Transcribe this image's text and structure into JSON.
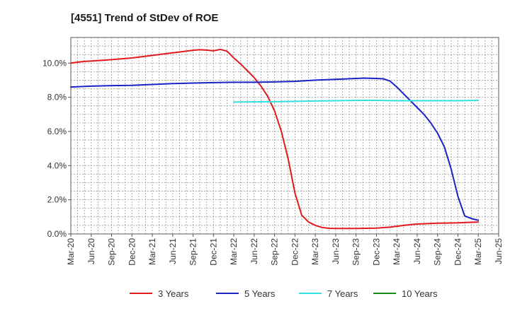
{
  "chart_data": {
    "type": "line",
    "title": "[4551]  Trend of StDev of ROE",
    "xlabel": "",
    "ylabel": "",
    "x_ticks": [
      "Mar-20",
      "Jun-20",
      "Sep-20",
      "Dec-20",
      "Mar-21",
      "Jun-21",
      "Sep-21",
      "Dec-21",
      "Mar-22",
      "Jun-22",
      "Sep-22",
      "Dec-22",
      "Mar-23",
      "Jun-23",
      "Sep-23",
      "Dec-23",
      "Mar-24",
      "Jun-24",
      "Sep-24",
      "Dec-24",
      "Mar-25",
      "Jun-25"
    ],
    "y_ticks": [
      "0.0%",
      "2.0%",
      "4.0%",
      "6.0%",
      "8.0%",
      "10.0%"
    ],
    "ylim": [
      0,
      11.5
    ],
    "grid": true,
    "legend_position": "bottom",
    "series": [
      {
        "name": "3 Years",
        "color": "#e31a1c",
        "points": [
          [
            "Mar-20",
            10.0
          ],
          [
            "Apr-20",
            10.05
          ],
          [
            "May-20",
            10.1
          ],
          [
            "Jun-20",
            10.12
          ],
          [
            "Sep-20",
            10.2
          ],
          [
            "Dec-20",
            10.3
          ],
          [
            "Mar-21",
            10.45
          ],
          [
            "Jun-21",
            10.6
          ],
          [
            "Sep-21",
            10.75
          ],
          [
            "Oct-21",
            10.78
          ],
          [
            "Nov-21",
            10.76
          ],
          [
            "Dec-21",
            10.72
          ],
          [
            "Jan-22",
            10.8
          ],
          [
            "Feb-22",
            10.7
          ],
          [
            "Mar-22",
            10.3
          ],
          [
            "Apr-22",
            9.95
          ],
          [
            "May-22",
            9.55
          ],
          [
            "Jun-22",
            9.15
          ],
          [
            "Jul-22",
            8.65
          ],
          [
            "Aug-22",
            8.05
          ],
          [
            "Sep-22",
            7.2
          ],
          [
            "Oct-22",
            6.0
          ],
          [
            "Nov-22",
            4.4
          ],
          [
            "Dec-22",
            2.4
          ],
          [
            "Jan-23",
            1.1
          ],
          [
            "Feb-23",
            0.7
          ],
          [
            "Mar-23",
            0.5
          ],
          [
            "Apr-23",
            0.38
          ],
          [
            "May-23",
            0.33
          ],
          [
            "Jun-23",
            0.32
          ],
          [
            "Sep-23",
            0.32
          ],
          [
            "Dec-23",
            0.34
          ],
          [
            "Feb-24",
            0.4
          ],
          [
            "Mar-24",
            0.45
          ],
          [
            "May-24",
            0.55
          ],
          [
            "Jun-24",
            0.58
          ],
          [
            "Sep-24",
            0.63
          ],
          [
            "Dec-24",
            0.65
          ],
          [
            "Mar-25",
            0.7
          ]
        ]
      },
      {
        "name": "5 Years",
        "color": "#1a22c8",
        "points": [
          [
            "Mar-20",
            8.6
          ],
          [
            "Jun-20",
            8.65
          ],
          [
            "Sep-20",
            8.68
          ],
          [
            "Dec-20",
            8.7
          ],
          [
            "Mar-21",
            8.75
          ],
          [
            "Jun-21",
            8.8
          ],
          [
            "Sep-21",
            8.83
          ],
          [
            "Dec-21",
            8.86
          ],
          [
            "Mar-22",
            8.88
          ],
          [
            "Jun-22",
            8.88
          ],
          [
            "Sep-22",
            8.9
          ],
          [
            "Dec-22",
            8.93
          ],
          [
            "Mar-23",
            9.0
          ],
          [
            "Jun-23",
            9.05
          ],
          [
            "Sep-23",
            9.1
          ],
          [
            "Oct-23",
            9.12
          ],
          [
            "Dec-23",
            9.1
          ],
          [
            "Jan-24",
            9.08
          ],
          [
            "Feb-24",
            8.95
          ],
          [
            "Mar-24",
            8.6
          ],
          [
            "Apr-24",
            8.2
          ],
          [
            "May-24",
            7.8
          ],
          [
            "Jun-24",
            7.4
          ],
          [
            "Jul-24",
            7.0
          ],
          [
            "Aug-24",
            6.5
          ],
          [
            "Sep-24",
            5.9
          ],
          [
            "Oct-24",
            5.1
          ],
          [
            "Nov-24",
            3.8
          ],
          [
            "Dec-24",
            2.2
          ],
          [
            "Jan-25",
            1.05
          ],
          [
            "Feb-25",
            0.9
          ],
          [
            "Mar-25",
            0.8
          ]
        ]
      },
      {
        "name": "7 Years",
        "color": "#33e0e0",
        "points": [
          [
            "Mar-22",
            7.72
          ],
          [
            "Jun-22",
            7.73
          ],
          [
            "Sep-22",
            7.74
          ],
          [
            "Dec-22",
            7.76
          ],
          [
            "Mar-23",
            7.78
          ],
          [
            "Jun-23",
            7.8
          ],
          [
            "Sep-23",
            7.82
          ],
          [
            "Dec-23",
            7.82
          ],
          [
            "Mar-24",
            7.8
          ],
          [
            "Jun-24",
            7.8
          ],
          [
            "Sep-24",
            7.8
          ],
          [
            "Dec-24",
            7.8
          ],
          [
            "Mar-25",
            7.82
          ]
        ]
      },
      {
        "name": "10 Years",
        "color": "#1a8a1a",
        "points": []
      }
    ]
  }
}
